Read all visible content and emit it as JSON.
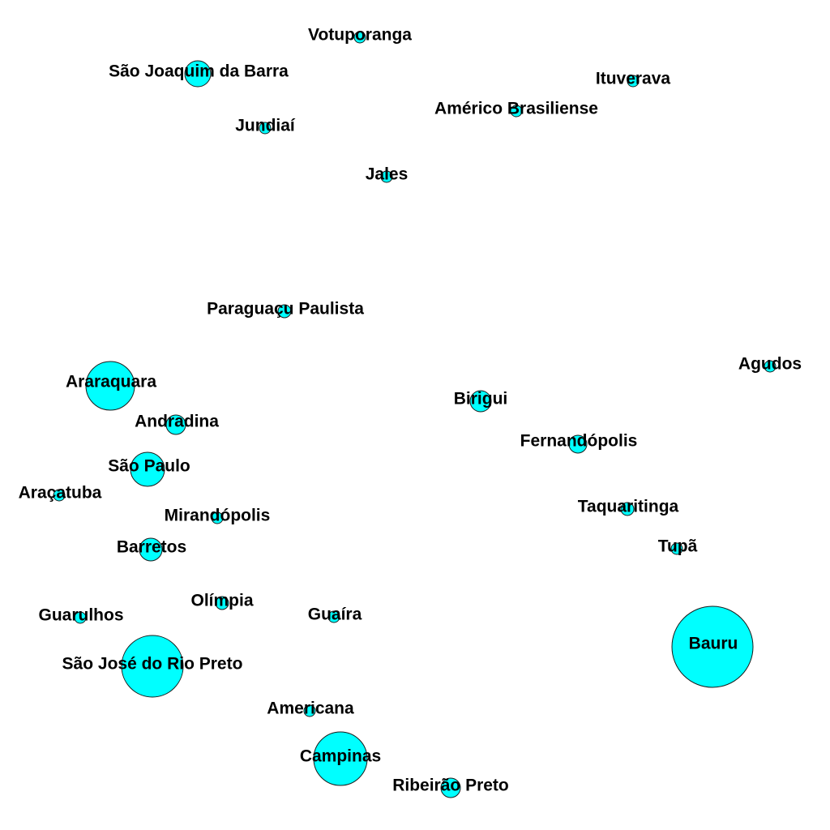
{
  "node_color": "#00ffff",
  "label_color": "#000000",
  "nodes": [
    {
      "id": "votuporanga",
      "label": "Votuporanga"
    },
    {
      "id": "sao-joaquim-da-barra",
      "label": "São Joaquim da Barra"
    },
    {
      "id": "ituverava",
      "label": "Ituverava"
    },
    {
      "id": "americo-brasiliense",
      "label": "Américo Brasiliense"
    },
    {
      "id": "jundiai",
      "label": "Jundiaí"
    },
    {
      "id": "jales",
      "label": "Jales"
    },
    {
      "id": "paraguacu-paulista",
      "label": "Paraguaçu Paulista"
    },
    {
      "id": "agudos",
      "label": "Agudos"
    },
    {
      "id": "araraquara",
      "label": "Araraquara"
    },
    {
      "id": "birigui",
      "label": "Birigui"
    },
    {
      "id": "andradina",
      "label": "Andradina"
    },
    {
      "id": "fernandopolis",
      "label": "Fernandópolis"
    },
    {
      "id": "sao-paulo",
      "label": "São Paulo"
    },
    {
      "id": "aracatuba",
      "label": "Araçatuba"
    },
    {
      "id": "taquaritinga",
      "label": "Taquaritinga"
    },
    {
      "id": "mirandopolis",
      "label": "Mirandópolis"
    },
    {
      "id": "tupa",
      "label": "Tupã"
    },
    {
      "id": "barretos",
      "label": "Barretos"
    },
    {
      "id": "olimpia",
      "label": "Olímpia"
    },
    {
      "id": "guarulhos",
      "label": "Guarulhos"
    },
    {
      "id": "guaira",
      "label": "Guaíra"
    },
    {
      "id": "bauru",
      "label": "Bauru"
    },
    {
      "id": "sao-jose-do-rio-preto",
      "label": "São José do Rio Preto"
    },
    {
      "id": "americana",
      "label": "Americana"
    },
    {
      "id": "campinas",
      "label": "Campinas"
    },
    {
      "id": "ribeirao-preto",
      "label": "Ribeirão Preto"
    }
  ]
}
